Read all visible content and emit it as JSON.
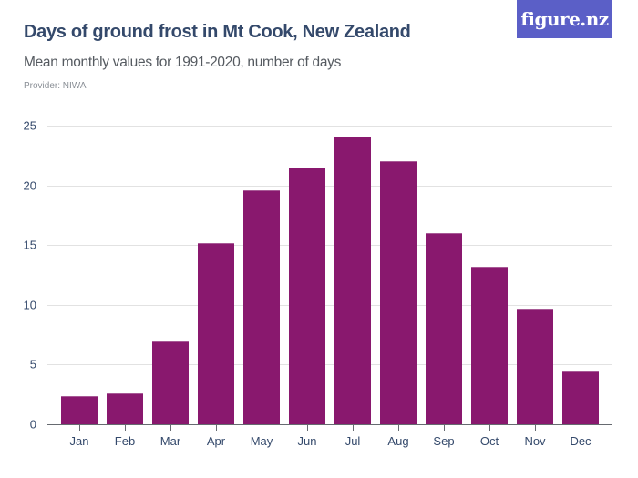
{
  "header": {
    "title": "Days of ground frost in Mt Cook, New Zealand",
    "subtitle": "Mean monthly values for 1991-2020, number of days",
    "provider": "Provider: NIWA",
    "logo_text": "figure.nz"
  },
  "colors": {
    "bar": "#89186e",
    "title": "#34496b",
    "logo_bg": "#5b5fc7",
    "grid": "#e2e2e2"
  },
  "chart_data": {
    "type": "bar",
    "title": "Days of ground frost in Mt Cook, New Zealand",
    "subtitle": "Mean monthly values for 1991-2020, number of days",
    "xlabel": "",
    "ylabel": "Number of days",
    "categories": [
      "Jan",
      "Feb",
      "Mar",
      "Apr",
      "May",
      "Jun",
      "Jul",
      "Aug",
      "Sep",
      "Oct",
      "Nov",
      "Dec"
    ],
    "values": [
      2.4,
      2.6,
      6.9,
      15.2,
      19.6,
      21.5,
      24.1,
      22.0,
      16.0,
      13.2,
      9.7,
      4.4
    ],
    "ylim": [
      0,
      25
    ],
    "yticks": [
      0,
      5,
      10,
      15,
      20,
      25
    ],
    "grid": true,
    "legend": null
  }
}
